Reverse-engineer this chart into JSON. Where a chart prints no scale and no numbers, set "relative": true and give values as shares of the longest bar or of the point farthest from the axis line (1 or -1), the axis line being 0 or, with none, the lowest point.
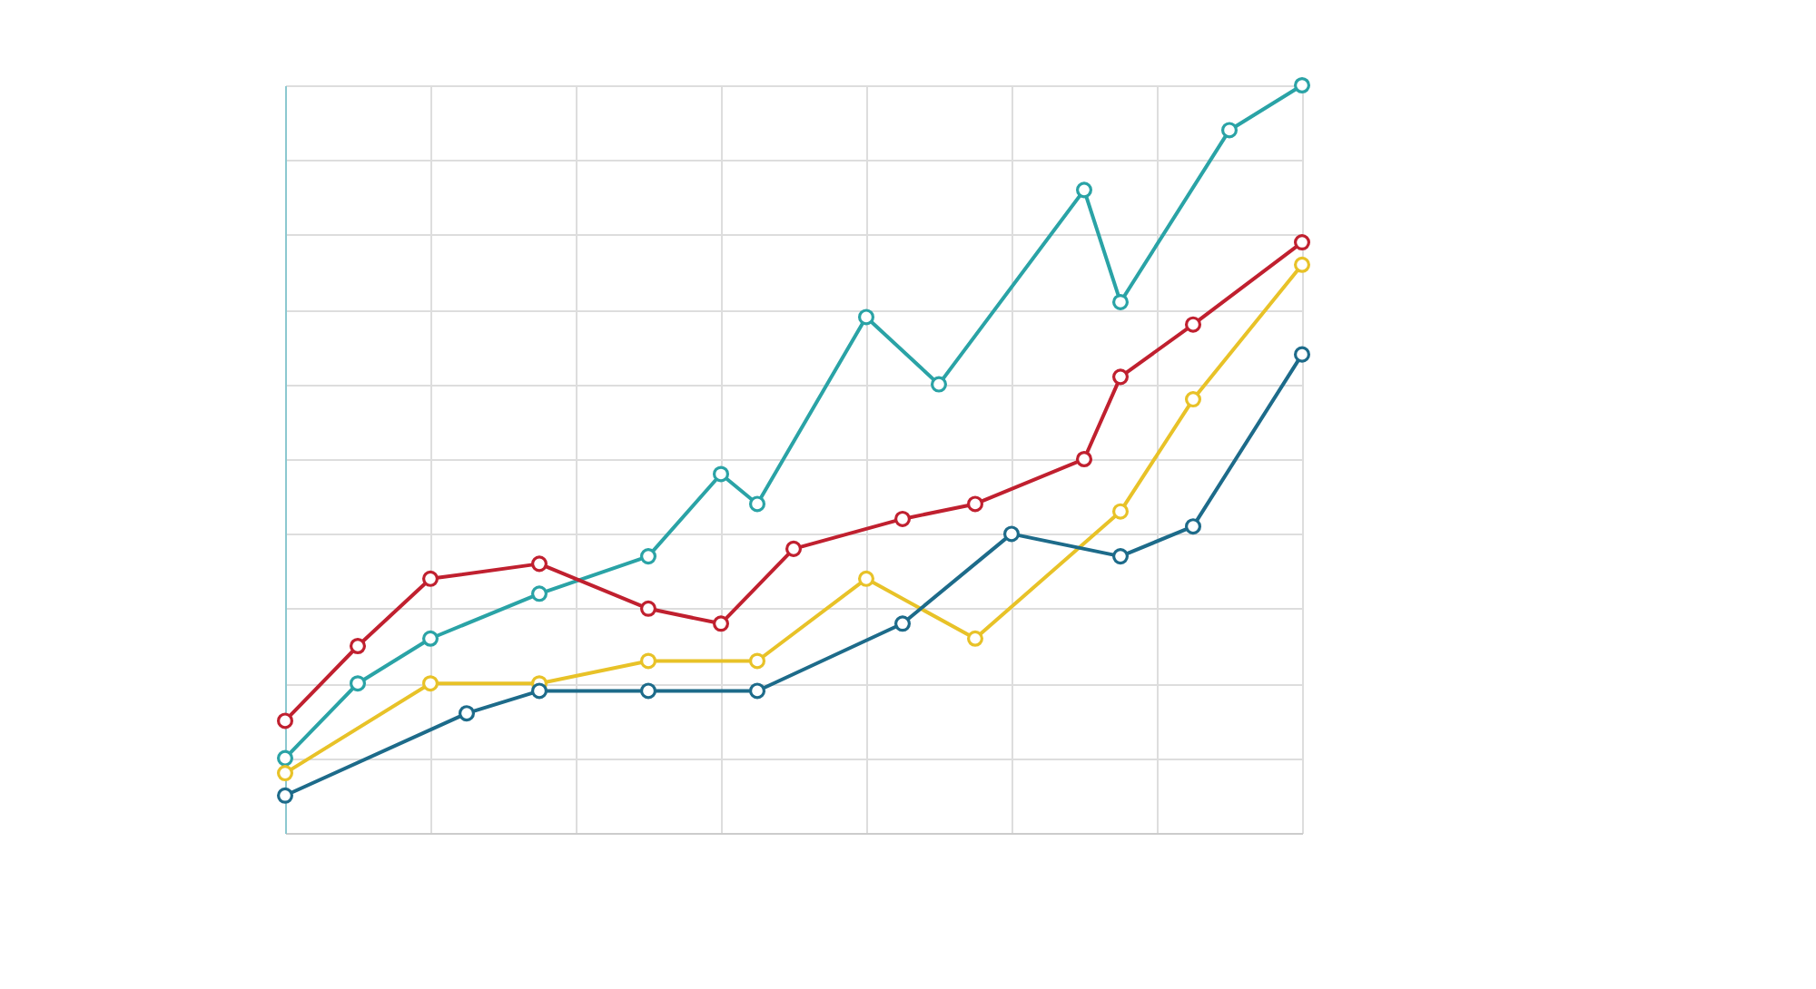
{
  "chart_data": {
    "type": "line",
    "relative": true,
    "categories": [
      null,
      null,
      null,
      null,
      null,
      null,
      null,
      null,
      null,
      null,
      null,
      null,
      null,
      null,
      null,
      null,
      null,
      null,
      null,
      null,
      null,
      null,
      null,
      null,
      null,
      null,
      null,
      null,
      null
    ],
    "grid": true,
    "marker": "circle",
    "line_style": "solid",
    "series": [
      {
        "color": "#2aa3a6",
        "values": [
          0.1,
          null,
          0.2,
          null,
          0.26,
          null,
          null,
          0.32,
          null,
          null,
          0.37,
          null,
          0.48,
          0.44,
          null,
          null,
          0.69,
          null,
          0.6,
          null,
          null,
          null,
          0.86,
          0.71,
          null,
          null,
          0.94,
          null,
          1.0
        ]
      },
      {
        "color": "#c0202f",
        "values": [
          0.15,
          null,
          0.25,
          null,
          0.34,
          null,
          null,
          0.36,
          null,
          null,
          0.3,
          null,
          0.28,
          null,
          0.38,
          null,
          null,
          0.42,
          null,
          0.44,
          null,
          null,
          0.5,
          0.61,
          null,
          0.68,
          null,
          null,
          0.79
        ]
      },
      {
        "color": "#e8c228",
        "values": [
          0.08,
          null,
          null,
          null,
          0.2,
          null,
          null,
          0.2,
          null,
          null,
          0.23,
          null,
          null,
          0.23,
          null,
          null,
          0.34,
          null,
          null,
          0.26,
          null,
          null,
          null,
          0.43,
          null,
          0.58,
          null,
          null,
          0.76
        ]
      },
      {
        "color": "#1d6b8a",
        "values": [
          0.05,
          null,
          null,
          null,
          null,
          0.16,
          null,
          0.19,
          null,
          null,
          0.19,
          null,
          null,
          0.19,
          null,
          null,
          null,
          0.28,
          null,
          null,
          0.4,
          null,
          null,
          0.37,
          null,
          0.41,
          null,
          null,
          0.64
        ]
      }
    ]
  }
}
